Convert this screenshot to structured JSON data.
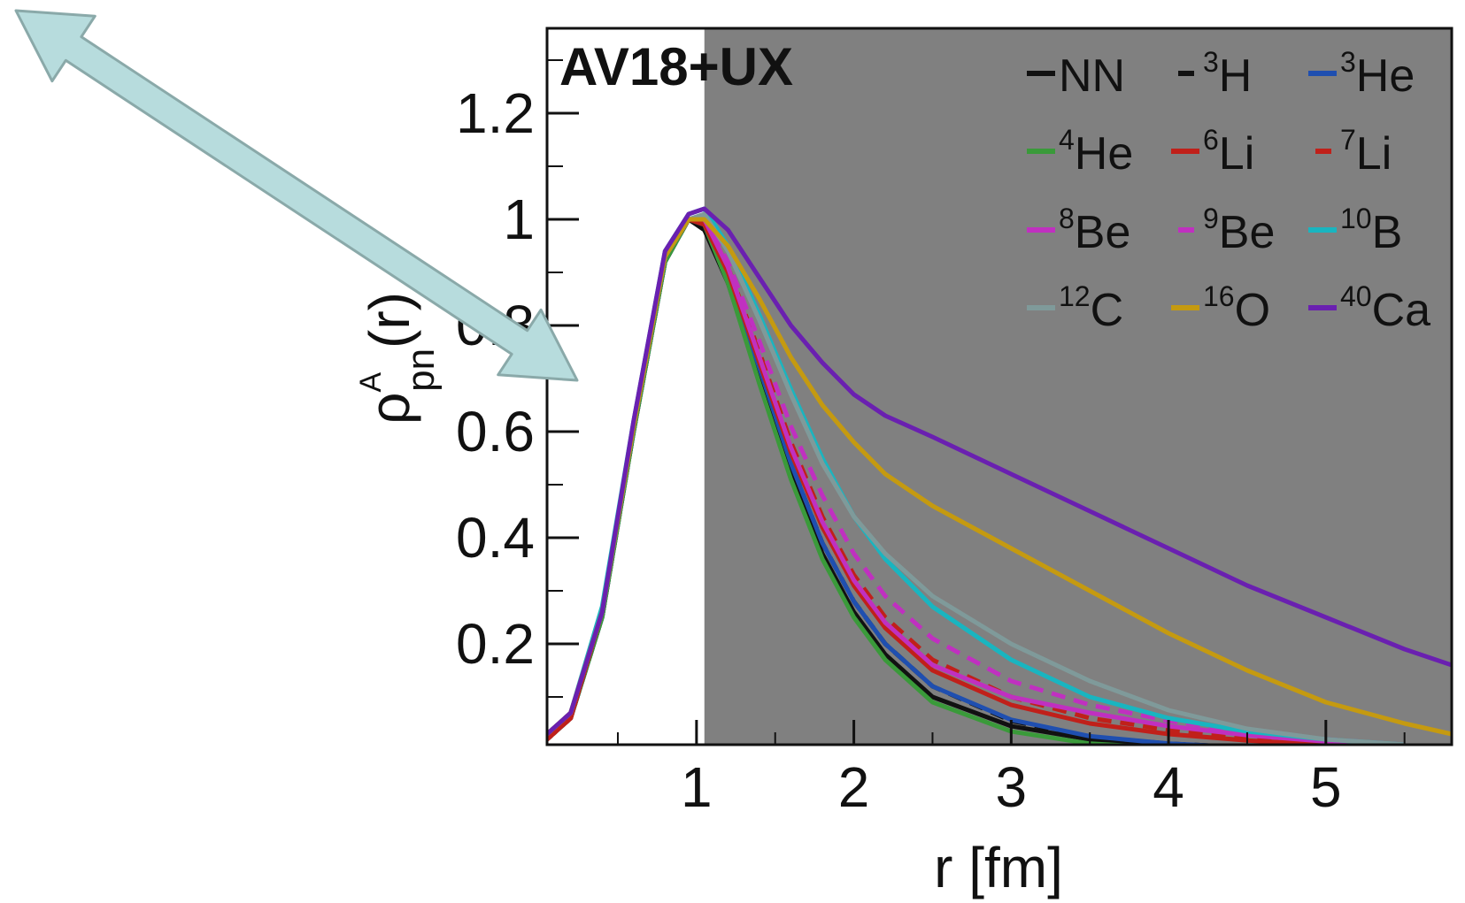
{
  "chart_data": {
    "type": "line",
    "title": "AV18+UX",
    "xlabel": "r [fm]",
    "ylabel": {
      "base": "ρ",
      "sub": "pn",
      "sup": "A",
      "arg": "(r)"
    },
    "xlim": [
      0.05,
      5.8
    ],
    "ylim": [
      0.01,
      1.36
    ],
    "xticks": [
      "1",
      "2",
      "3",
      "4",
      "5"
    ],
    "yticks": [
      "0.2",
      "0.4",
      "0.6",
      "0.8",
      "1",
      "1.2"
    ],
    "grid": false,
    "legend_position": "top-right",
    "shaded_region": {
      "from": 1.05,
      "to": 5.8,
      "color": "#808080"
    },
    "arrow": {
      "color": "#b7dcdd",
      "outline": "#8aa9a9"
    },
    "series": [
      {
        "name": "NN",
        "sup": "",
        "color": "#111111",
        "dash": false,
        "x": [
          0.05,
          0.2,
          0.4,
          0.6,
          0.8,
          0.95,
          1.05,
          1.2,
          1.4,
          1.6,
          1.8,
          2.0,
          2.2,
          2.5,
          3.0,
          3.5,
          4.0,
          4.5,
          5.0
        ],
        "y": [
          0.02,
          0.06,
          0.25,
          0.6,
          0.92,
          1.0,
          0.98,
          0.88,
          0.7,
          0.52,
          0.37,
          0.26,
          0.18,
          0.1,
          0.045,
          0.02,
          0.01,
          0.004,
          0.002
        ]
      },
      {
        "name": "H",
        "sup": "3",
        "color": "#111111",
        "dash": true,
        "x": [
          0.05,
          0.2,
          0.4,
          0.6,
          0.8,
          0.95,
          1.05,
          1.2,
          1.4,
          1.6,
          1.8,
          2.0,
          2.2,
          2.5,
          3.0,
          3.5,
          4.0,
          4.5,
          5.0
        ],
        "y": [
          0.02,
          0.06,
          0.25,
          0.6,
          0.92,
          1.0,
          0.99,
          0.89,
          0.72,
          0.54,
          0.39,
          0.28,
          0.2,
          0.12,
          0.055,
          0.025,
          0.012,
          0.005,
          0.002
        ]
      },
      {
        "name": "He",
        "sup": "3",
        "color": "#1f4fb0",
        "dash": false,
        "x": [
          0.05,
          0.2,
          0.4,
          0.6,
          0.8,
          0.95,
          1.05,
          1.2,
          1.4,
          1.6,
          1.8,
          2.0,
          2.2,
          2.5,
          3.0,
          3.5,
          4.0,
          4.5,
          5.0
        ],
        "y": [
          0.02,
          0.06,
          0.25,
          0.6,
          0.92,
          1.0,
          0.99,
          0.89,
          0.72,
          0.54,
          0.39,
          0.28,
          0.2,
          0.12,
          0.057,
          0.026,
          0.012,
          0.005,
          0.002
        ]
      },
      {
        "name": "He",
        "sup": "4",
        "color": "#3a9a3a",
        "dash": false,
        "x": [
          0.05,
          0.2,
          0.4,
          0.6,
          0.8,
          0.95,
          1.05,
          1.2,
          1.4,
          1.6,
          1.8,
          2.0,
          2.2,
          2.5,
          3.0,
          3.5,
          4.0,
          4.5,
          5.0
        ],
        "y": [
          0.02,
          0.06,
          0.25,
          0.6,
          0.92,
          1.0,
          0.99,
          0.88,
          0.69,
          0.51,
          0.36,
          0.25,
          0.17,
          0.09,
          0.035,
          0.012,
          0.004,
          0.001,
          0.0
        ]
      },
      {
        "name": "Li",
        "sup": "6",
        "color": "#c0201a",
        "dash": false,
        "x": [
          0.05,
          0.2,
          0.4,
          0.6,
          0.8,
          0.95,
          1.05,
          1.2,
          1.4,
          1.6,
          1.8,
          2.0,
          2.2,
          2.5,
          3.0,
          3.5,
          4.0,
          4.5,
          5.0,
          5.5
        ],
        "y": [
          0.02,
          0.06,
          0.26,
          0.61,
          0.93,
          1.0,
          0.99,
          0.9,
          0.73,
          0.56,
          0.42,
          0.31,
          0.23,
          0.15,
          0.085,
          0.05,
          0.03,
          0.018,
          0.01,
          0.005
        ]
      },
      {
        "name": "Li",
        "sup": "7",
        "color": "#c0201a",
        "dash": true,
        "x": [
          0.05,
          0.2,
          0.4,
          0.6,
          0.8,
          0.95,
          1.05,
          1.2,
          1.4,
          1.6,
          1.8,
          2.0,
          2.2,
          2.5,
          3.0,
          3.5,
          4.0,
          4.5,
          5.0,
          5.5
        ],
        "y": [
          0.02,
          0.06,
          0.26,
          0.61,
          0.93,
          1.0,
          1.0,
          0.91,
          0.75,
          0.58,
          0.44,
          0.33,
          0.25,
          0.17,
          0.1,
          0.06,
          0.038,
          0.024,
          0.014,
          0.007
        ]
      },
      {
        "name": "Be",
        "sup": "8",
        "color": "#c030c0",
        "dash": false,
        "x": [
          0.05,
          0.2,
          0.4,
          0.6,
          0.8,
          0.95,
          1.05,
          1.2,
          1.4,
          1.6,
          1.8,
          2.0,
          2.2,
          2.5,
          3.0,
          3.5,
          4.0,
          4.5,
          5.0,
          5.5
        ],
        "y": [
          0.03,
          0.07,
          0.26,
          0.61,
          0.93,
          1.0,
          1.0,
          0.91,
          0.74,
          0.57,
          0.43,
          0.32,
          0.24,
          0.16,
          0.1,
          0.07,
          0.045,
          0.028,
          0.016,
          0.008
        ]
      },
      {
        "name": "Be",
        "sup": "9",
        "color": "#c030c0",
        "dash": true,
        "x": [
          0.05,
          0.2,
          0.4,
          0.6,
          0.8,
          0.95,
          1.05,
          1.2,
          1.4,
          1.6,
          1.8,
          2.0,
          2.2,
          2.5,
          3.0,
          3.5,
          4.0,
          4.5,
          5.0,
          5.5
        ],
        "y": [
          0.03,
          0.07,
          0.26,
          0.61,
          0.93,
          1.0,
          1.0,
          0.92,
          0.77,
          0.61,
          0.48,
          0.37,
          0.29,
          0.21,
          0.13,
          0.085,
          0.055,
          0.034,
          0.02,
          0.01
        ]
      },
      {
        "name": "B",
        "sup": "10",
        "color": "#19b5c0",
        "dash": false,
        "x": [
          0.05,
          0.2,
          0.4,
          0.6,
          0.8,
          0.95,
          1.05,
          1.2,
          1.4,
          1.6,
          1.8,
          2.0,
          2.2,
          2.5,
          3.0,
          3.5,
          4.0,
          4.5,
          5.0,
          5.5
        ],
        "y": [
          0.03,
          0.07,
          0.27,
          0.62,
          0.94,
          1.01,
          1.02,
          0.95,
          0.82,
          0.68,
          0.55,
          0.44,
          0.36,
          0.27,
          0.17,
          0.1,
          0.06,
          0.035,
          0.02,
          0.01
        ]
      },
      {
        "name": "C",
        "sup": "12",
        "color": "#7f9a9a",
        "dash": false,
        "x": [
          0.05,
          0.2,
          0.4,
          0.6,
          0.8,
          0.95,
          1.05,
          1.2,
          1.4,
          1.6,
          1.8,
          2.0,
          2.2,
          2.5,
          3.0,
          3.5,
          4.0,
          4.5,
          5.0,
          5.5
        ],
        "y": [
          0.03,
          0.07,
          0.26,
          0.61,
          0.93,
          1.0,
          1.01,
          0.94,
          0.81,
          0.67,
          0.54,
          0.44,
          0.37,
          0.29,
          0.2,
          0.13,
          0.075,
          0.04,
          0.02,
          0.01
        ]
      },
      {
        "name": "O",
        "sup": "16",
        "color": "#c59a10",
        "dash": false,
        "x": [
          0.05,
          0.2,
          0.4,
          0.6,
          0.8,
          0.95,
          1.05,
          1.2,
          1.4,
          1.6,
          1.8,
          2.0,
          2.2,
          2.5,
          3.0,
          3.5,
          4.0,
          4.5,
          5.0,
          5.5,
          5.8
        ],
        "y": [
          0.03,
          0.07,
          0.26,
          0.61,
          0.93,
          1.0,
          1.0,
          0.95,
          0.85,
          0.74,
          0.65,
          0.58,
          0.52,
          0.46,
          0.38,
          0.3,
          0.22,
          0.15,
          0.09,
          0.05,
          0.03
        ]
      },
      {
        "name": "Ca",
        "sup": "40",
        "color": "#6a20b0",
        "dash": false,
        "x": [
          0.05,
          0.2,
          0.4,
          0.6,
          0.8,
          0.95,
          1.05,
          1.2,
          1.4,
          1.6,
          1.8,
          2.0,
          2.2,
          2.5,
          3.0,
          3.5,
          4.0,
          4.5,
          5.0,
          5.5,
          5.8
        ],
        "y": [
          0.03,
          0.07,
          0.26,
          0.62,
          0.94,
          1.01,
          1.02,
          0.98,
          0.89,
          0.8,
          0.73,
          0.67,
          0.63,
          0.59,
          0.52,
          0.45,
          0.38,
          0.31,
          0.25,
          0.19,
          0.16
        ]
      }
    ]
  }
}
